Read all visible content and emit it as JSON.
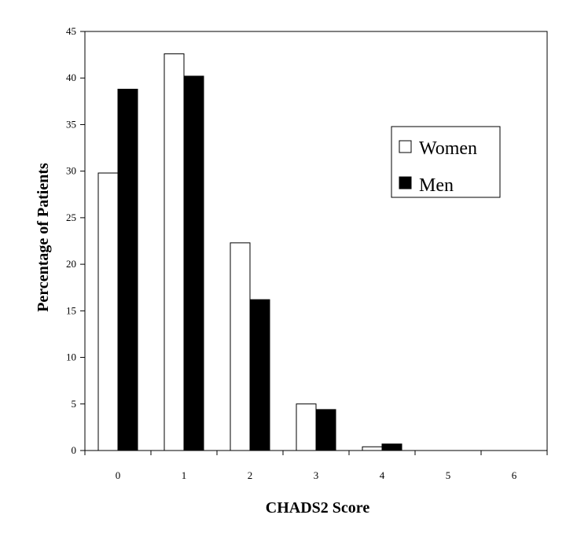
{
  "chart_data": {
    "type": "bar",
    "title": "",
    "xlabel": "CHADS2 Score",
    "ylabel": "Percentage of Patients",
    "categories": [
      "0",
      "1",
      "2",
      "3",
      "4",
      "5",
      "6"
    ],
    "series": [
      {
        "name": "Women",
        "values": [
          29.8,
          42.6,
          22.3,
          5.0,
          0.4,
          0,
          0
        ],
        "color": "#ffffff"
      },
      {
        "name": "Men",
        "values": [
          38.8,
          40.2,
          16.2,
          4.4,
          0.7,
          0,
          0
        ],
        "color": "#000000"
      }
    ],
    "ylim": [
      0,
      45
    ],
    "yticks": [
      "0",
      "5",
      "10",
      "15",
      "20",
      "25",
      "30",
      "35",
      "40",
      "45"
    ],
    "grid": false,
    "legend_position": "top-right"
  }
}
